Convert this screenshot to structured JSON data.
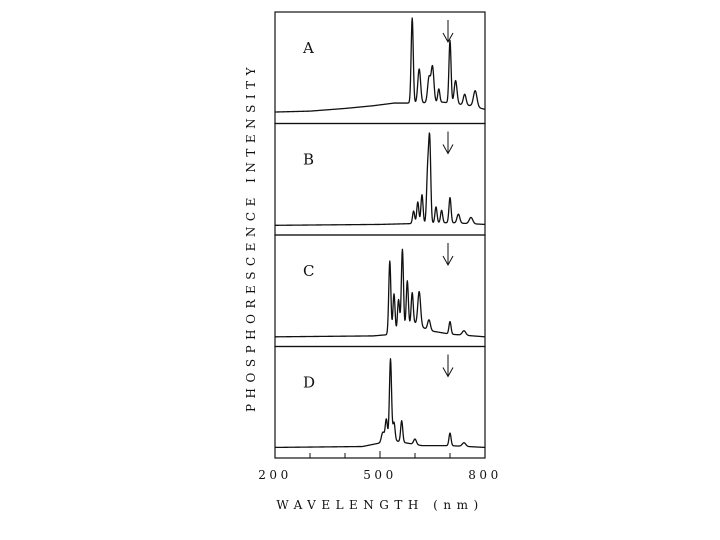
{
  "chart_data": {
    "type": "line",
    "ylabel": "PHOSPHORESCENCE INTENSITY",
    "xlabel": "WAVELENGTH (nm)",
    "xlim": [
      200,
      800
    ],
    "x_ticks": [
      200,
      500,
      800
    ],
    "x_tick_labels": [
      "200",
      "500",
      "800"
    ],
    "minor_ticks": [
      300,
      400,
      600,
      700
    ],
    "grid": false,
    "marker": {
      "symbol": "↓",
      "x": 700
    },
    "panels": [
      {
        "label": "A",
        "baseline": 0.05,
        "background": [
          [
            200,
            0.05
          ],
          [
            300,
            0.06
          ],
          [
            400,
            0.09
          ],
          [
            480,
            0.12
          ],
          [
            540,
            0.15
          ],
          [
            600,
            0.15
          ],
          [
            680,
            0.16
          ],
          [
            760,
            0.12
          ],
          [
            800,
            0.08
          ]
        ],
        "peaks": [
          [
            592,
            0.95,
            3
          ],
          [
            612,
            0.38,
            4
          ],
          [
            640,
            0.28,
            4
          ],
          [
            650,
            0.4,
            4
          ],
          [
            668,
            0.15,
            3
          ],
          [
            700,
            0.7,
            3
          ],
          [
            716,
            0.26,
            4
          ],
          [
            742,
            0.12,
            4
          ],
          [
            772,
            0.18,
            5
          ]
        ]
      },
      {
        "label": "B",
        "baseline": 0.03,
        "background": [
          [
            200,
            0.03
          ],
          [
            500,
            0.04
          ],
          [
            600,
            0.05
          ],
          [
            700,
            0.06
          ],
          [
            800,
            0.04
          ]
        ],
        "peaks": [
          [
            596,
            0.14,
            3
          ],
          [
            608,
            0.24,
            3
          ],
          [
            620,
            0.32,
            3
          ],
          [
            636,
            0.55,
            3
          ],
          [
            642,
            0.92,
            3
          ],
          [
            660,
            0.18,
            3
          ],
          [
            676,
            0.14,
            3
          ],
          [
            700,
            0.28,
            3
          ],
          [
            724,
            0.1,
            4
          ],
          [
            760,
            0.07,
            5
          ]
        ]
      },
      {
        "label": "C",
        "baseline": 0.03,
        "background": [
          [
            200,
            0.03
          ],
          [
            480,
            0.04
          ],
          [
            540,
            0.06
          ],
          [
            600,
            0.18
          ],
          [
            640,
            0.1
          ],
          [
            700,
            0.06
          ],
          [
            800,
            0.03
          ]
        ],
        "peaks": [
          [
            528,
            0.82,
            3
          ],
          [
            540,
            0.45,
            3
          ],
          [
            553,
            0.36,
            3
          ],
          [
            564,
            0.9,
            3
          ],
          [
            578,
            0.52,
            3
          ],
          [
            592,
            0.36,
            3
          ],
          [
            612,
            0.38,
            4
          ],
          [
            640,
            0.12,
            4
          ],
          [
            700,
            0.14,
            3
          ],
          [
            740,
            0.05,
            5
          ]
        ]
      },
      {
        "label": "D",
        "baseline": 0.04,
        "background": [
          [
            200,
            0.04
          ],
          [
            450,
            0.05
          ],
          [
            500,
            0.09
          ],
          [
            520,
            0.14
          ],
          [
            560,
            0.1
          ],
          [
            620,
            0.06
          ],
          [
            700,
            0.06
          ],
          [
            800,
            0.04
          ]
        ],
        "peaks": [
          [
            508,
            0.1,
            4
          ],
          [
            518,
            0.22,
            3
          ],
          [
            530,
            0.9,
            3
          ],
          [
            540,
            0.2,
            3
          ],
          [
            562,
            0.24,
            3
          ],
          [
            600,
            0.06,
            4
          ],
          [
            700,
            0.14,
            3
          ],
          [
            740,
            0.04,
            5
          ]
        ]
      }
    ]
  }
}
